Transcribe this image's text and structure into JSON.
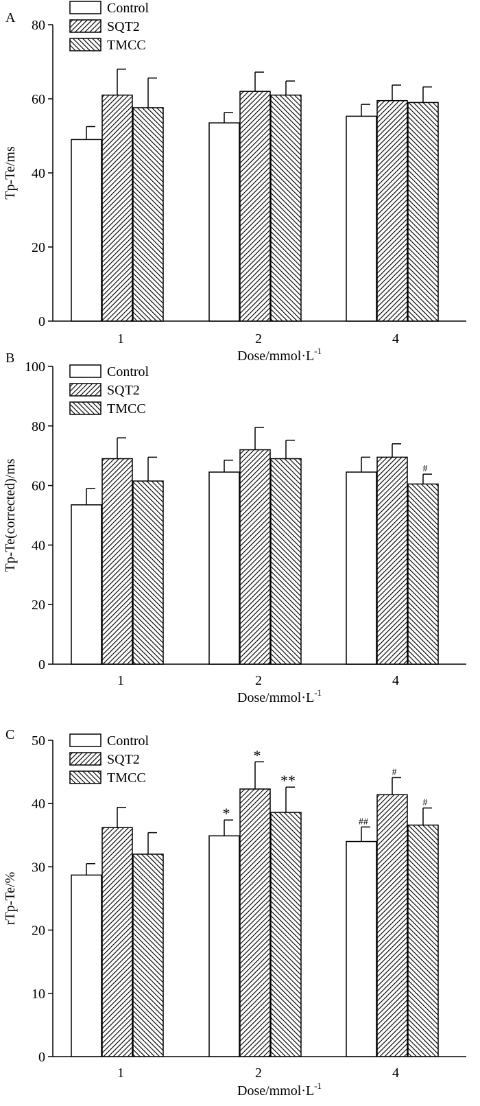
{
  "legend": [
    {
      "label": "Control",
      "pattern": "none"
    },
    {
      "label": "SQT2",
      "pattern": "hatch-forward"
    },
    {
      "label": "TMCC",
      "pattern": "hatch-back"
    }
  ],
  "chart_data": [
    {
      "type": "bar",
      "panel": "A",
      "categories": [
        "1",
        "2",
        "4"
      ],
      "series": [
        {
          "name": "Control",
          "values": [
            49,
            53.5,
            55.3
          ],
          "errors": [
            3.5,
            2.8,
            3.2
          ]
        },
        {
          "name": "SQT2",
          "values": [
            61,
            62,
            59.5
          ],
          "errors": [
            7,
            5.2,
            4.2
          ]
        },
        {
          "name": "TMCC",
          "values": [
            57.6,
            61,
            59
          ],
          "errors": [
            8,
            3.8,
            4.2
          ]
        }
      ],
      "annotations": [
        [
          "",
          "",
          ""
        ],
        [
          "",
          "",
          ""
        ],
        [
          "",
          "",
          ""
        ]
      ],
      "ylabel": "Tp-Te/ms",
      "xlabel_main": "Dose/mmol·L",
      "xlabel_sup": "-1",
      "yticks": [
        "0",
        "20",
        "40",
        "60",
        "80"
      ],
      "ylim": [
        0,
        80
      ]
    },
    {
      "type": "bar",
      "panel": "B",
      "categories": [
        "1",
        "2",
        "4"
      ],
      "series": [
        {
          "name": "Control",
          "values": [
            53.5,
            64.5,
            64.5
          ],
          "errors": [
            5.5,
            4,
            5
          ]
        },
        {
          "name": "SQT2",
          "values": [
            69,
            72,
            69.5
          ],
          "errors": [
            7,
            7.5,
            4.5
          ]
        },
        {
          "name": "TMCC",
          "values": [
            61.5,
            69,
            60.5
          ],
          "errors": [
            8,
            6.2,
            3.3
          ]
        }
      ],
      "annotations": [
        [
          "",
          "",
          ""
        ],
        [
          "",
          "",
          ""
        ],
        [
          "",
          "",
          "#"
        ]
      ],
      "ylabel": "Tp-Te(corrected)/ms",
      "xlabel_main": "Dose/mmol·L",
      "xlabel_sup": "-1",
      "yticks": [
        "0",
        "20",
        "40",
        "60",
        "80",
        "100"
      ],
      "ylim": [
        0,
        100
      ]
    },
    {
      "type": "bar",
      "panel": "C",
      "categories": [
        "1",
        "2",
        "4"
      ],
      "series": [
        {
          "name": "Control",
          "values": [
            28.7,
            34.9,
            34
          ],
          "errors": [
            1.8,
            2.5,
            2.3
          ]
        },
        {
          "name": "SQT2",
          "values": [
            36.2,
            42.3,
            41.4
          ],
          "errors": [
            3.2,
            4.3,
            2.7
          ]
        },
        {
          "name": "TMCC",
          "values": [
            32,
            38.6,
            36.6
          ],
          "errors": [
            3.4,
            4,
            2.7
          ]
        }
      ],
      "annotations": [
        [
          "",
          "*",
          "##"
        ],
        [
          "",
          "*",
          "#"
        ],
        [
          "",
          "**",
          "#"
        ]
      ],
      "ylabel": "rTp-Te/%",
      "xlabel_main": "Dose/mmol·L",
      "xlabel_sup": "-1",
      "yticks": [
        "0",
        "10",
        "20",
        "30",
        "40",
        "50"
      ],
      "ylim": [
        0,
        50
      ]
    }
  ]
}
